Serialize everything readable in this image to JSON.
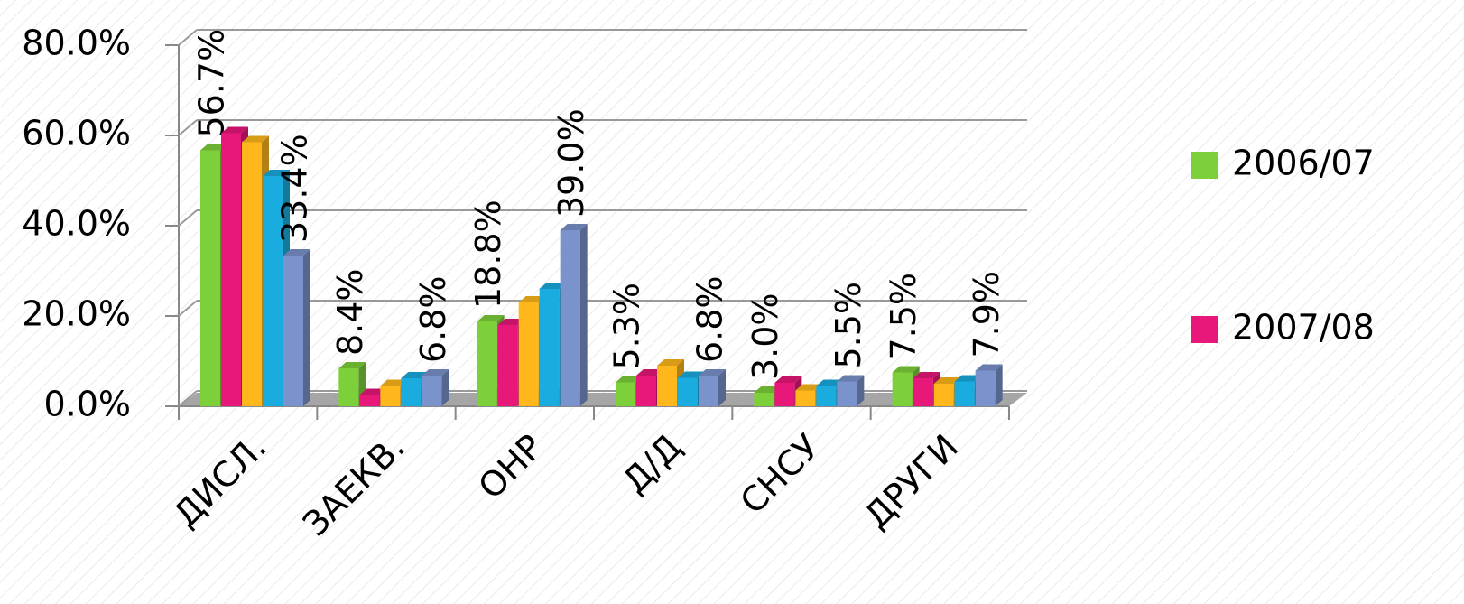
{
  "chart_data": {
    "type": "bar3d",
    "categories": [
      "ДИСЛ.",
      "ЗАЕКВ.",
      "ОНР",
      "Д/Д",
      "СНСУ",
      "ДРУГИ"
    ],
    "series": [
      {
        "name": "2006/07",
        "color": "#7ed03a",
        "values": [
          56.7,
          8.4,
          18.8,
          5.3,
          3.0,
          7.5
        ],
        "value_labels": [
          "56.7%",
          "8.4%",
          "18.8%",
          "5.3%",
          "3.0%",
          "7.5%"
        ]
      },
      {
        "name": "2007/08",
        "color": "#e8177a",
        "values": [
          60.5,
          2.5,
          18,
          6.8,
          5.2,
          6.2
        ]
      },
      {
        "color": "#ffb71b",
        "values": [
          58.5,
          4.5,
          23,
          9,
          3.5,
          5
        ]
      },
      {
        "color": "#1aabdf",
        "values": [
          51,
          6.2,
          26,
          6.3,
          4.5,
          5.5
        ]
      },
      {
        "color": "#7a93cc",
        "values": [
          33.4,
          6.8,
          39.0,
          6.8,
          5.5,
          7.9
        ],
        "value_labels": [
          "33.4%",
          "6.8%",
          "39.0%",
          "6.8%",
          "5.5%",
          "7.9%"
        ]
      }
    ],
    "ylim": [
      0,
      80
    ],
    "yticks": [
      {
        "value": 0,
        "label": "0.0%"
      },
      {
        "value": 20,
        "label": "20.0%"
      },
      {
        "value": 40,
        "label": "40.0%"
      },
      {
        "value": 60,
        "label": "60.0%"
      },
      {
        "value": 80,
        "label": "80.0%"
      }
    ],
    "grid": true
  }
}
